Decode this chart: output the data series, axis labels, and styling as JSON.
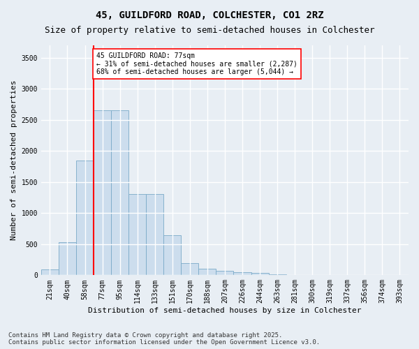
{
  "title": "45, GUILDFORD ROAD, COLCHESTER, CO1 2RZ",
  "subtitle": "Size of property relative to semi-detached houses in Colchester",
  "xlabel": "Distribution of semi-detached houses by size in Colchester",
  "ylabel": "Number of semi-detached properties",
  "categories": [
    "21sqm",
    "40sqm",
    "58sqm",
    "77sqm",
    "95sqm",
    "114sqm",
    "133sqm",
    "151sqm",
    "170sqm",
    "188sqm",
    "207sqm",
    "226sqm",
    "244sqm",
    "263sqm",
    "281sqm",
    "300sqm",
    "319sqm",
    "337sqm",
    "356sqm",
    "374sqm",
    "393sqm"
  ],
  "values": [
    90,
    530,
    1850,
    2650,
    2650,
    1310,
    1310,
    640,
    200,
    110,
    70,
    50,
    35,
    10,
    5,
    2,
    1,
    1,
    0,
    0,
    0
  ],
  "bar_color": "#ccdded",
  "bar_edge_color": "#7aaac8",
  "vline_index": 3,
  "vline_color": "red",
  "annotation_text": "45 GUILDFORD ROAD: 77sqm\n← 31% of semi-detached houses are smaller (2,287)\n68% of semi-detached houses are larger (5,044) →",
  "annotation_box_color": "white",
  "annotation_box_edge": "red",
  "ylim": [
    0,
    3700
  ],
  "yticks": [
    0,
    500,
    1000,
    1500,
    2000,
    2500,
    3000,
    3500
  ],
  "footnote": "Contains HM Land Registry data © Crown copyright and database right 2025.\nContains public sector information licensed under the Open Government Licence v3.0.",
  "bg_color": "#e8eef4",
  "plot_bg_color": "#e8eef4",
  "grid_color": "white",
  "title_fontsize": 10,
  "subtitle_fontsize": 9,
  "label_fontsize": 8,
  "tick_fontsize": 7,
  "footnote_fontsize": 6.5
}
